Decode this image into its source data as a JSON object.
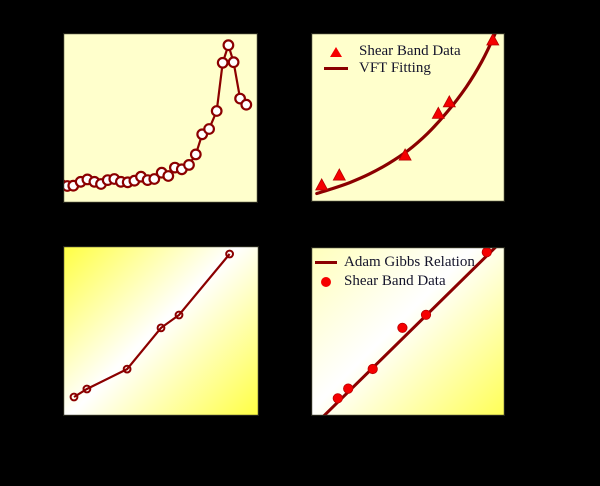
{
  "colors": {
    "background": "#000000",
    "panel-bg-solid": "#FFFFCC",
    "gradient-yellow-c": "#FFFF42",
    "gradient-pale-d": "#FFFFBB",
    "gradient-yellow-d": "#FFFF55",
    "maroon": "#8B0000",
    "red": "#F50000",
    "red-edge": "#B80000",
    "white": "#FFFFFF",
    "legend-text": "#14142B",
    "axis-border": "#222218"
  },
  "chart_data": [
    {
      "id": "panel-a",
      "type": "line",
      "background": "solid-pale-yellow",
      "axis_labels_visible": false,
      "coordinates": "normalized 0-1, x left-to-right, y bottom-to-top (axis tick text not legible in source)",
      "series": [
        {
          "name": "open-circle-curve",
          "line": "straight",
          "line_color_key": "maroon",
          "line_width": 2.2,
          "marker": "circle-open",
          "marker_radius": 4.8,
          "marker_stroke_width": 2.2,
          "marker_fill_key": "white",
          "marker_edge_key": "maroon",
          "points": [
            [
              -0.007,
              0.106
            ],
            [
              0.022,
              0.1
            ],
            [
              0.053,
              0.102
            ],
            [
              0.091,
              0.125
            ],
            [
              0.125,
              0.139
            ],
            [
              0.161,
              0.125
            ],
            [
              0.195,
              0.112
            ],
            [
              0.229,
              0.135
            ],
            [
              0.263,
              0.141
            ],
            [
              0.297,
              0.125
            ],
            [
              0.332,
              0.122
            ],
            [
              0.366,
              0.131
            ],
            [
              0.4,
              0.155
            ],
            [
              0.434,
              0.135
            ],
            [
              0.468,
              0.141
            ],
            [
              0.506,
              0.178
            ],
            [
              0.54,
              0.159
            ],
            [
              0.574,
              0.208
            ],
            [
              0.609,
              0.198
            ],
            [
              0.646,
              0.224
            ],
            [
              0.681,
              0.286
            ],
            [
              0.714,
              0.404
            ],
            [
              0.749,
              0.435
            ],
            [
              0.788,
              0.541
            ],
            [
              0.819,
              0.825
            ],
            [
              0.848,
              0.928
            ],
            [
              0.875,
              0.828
            ],
            [
              0.908,
              0.614
            ],
            [
              0.94,
              0.578
            ]
          ]
        }
      ]
    },
    {
      "id": "panel-b",
      "type": "scatter-with-fit",
      "background": "solid-pale-yellow",
      "axis_labels_visible": false,
      "legend": [
        {
          "swatch": "triangle",
          "label": "Shear Band Data"
        },
        {
          "swatch": "line",
          "label": "VFT Fitting"
        }
      ],
      "series": [
        {
          "name": "vft-fit-curve",
          "line": "smooth",
          "line_color_key": "maroon",
          "line_width": 3.2,
          "points": [
            [
              0.03,
              0.05
            ],
            [
              0.1,
              0.075
            ],
            [
              0.2,
              0.115
            ],
            [
              0.3,
              0.165
            ],
            [
              0.4,
              0.228
            ],
            [
              0.5,
              0.305
            ],
            [
              0.6,
              0.405
            ],
            [
              0.7,
              0.53
            ],
            [
              0.8,
              0.68
            ],
            [
              0.88,
              0.83
            ],
            [
              0.945,
              0.985
            ],
            [
              0.958,
              1.03
            ]
          ]
        },
        {
          "name": "shear-band-triangles",
          "marker": "triangle",
          "marker_size": 12,
          "marker_fill_key": "red",
          "marker_edge_key": "red-edge",
          "points": [
            [
              0.055,
              0.101
            ],
            [
              0.146,
              0.16
            ],
            [
              0.485,
              0.278
            ],
            [
              0.656,
              0.525
            ],
            [
              0.713,
              0.593
            ],
            [
              0.937,
              0.959
            ]
          ]
        }
      ]
    },
    {
      "id": "panel-c",
      "type": "line",
      "background": "diagonal-yellow-white-yellow-gradient",
      "axis_labels_visible": false,
      "series": [
        {
          "name": "ring-markers",
          "marker": "circle-ring",
          "marker_radius": 3.4,
          "marker_stroke_width": 2,
          "marker_edge_key": "maroon",
          "points": [
            [
              0.056,
              0.112
            ],
            [
              0.122,
              0.159
            ],
            [
              0.327,
              0.276
            ],
            [
              0.5,
              0.518
            ],
            [
              0.592,
              0.594
            ],
            [
              0.85,
              0.953
            ]
          ]
        },
        {
          "name": "connecting-line",
          "line": "straight",
          "line_color_key": "maroon",
          "line_width": 2.2,
          "points": [
            [
              0.056,
              0.112
            ],
            [
              0.122,
              0.159
            ],
            [
              0.327,
              0.276
            ],
            [
              0.5,
              0.518
            ],
            [
              0.592,
              0.594
            ],
            [
              0.85,
              0.953
            ]
          ]
        }
      ]
    },
    {
      "id": "panel-d",
      "type": "scatter-with-fit",
      "background": "diagonal-yellow-white-yellow-gradient",
      "axis_labels_visible": false,
      "legend": [
        {
          "swatch": "line",
          "label": "Adam Gibbs Relation"
        },
        {
          "swatch": "dot",
          "label": "Shear Band Data"
        }
      ],
      "series": [
        {
          "name": "adam-gibbs-fit-line",
          "line": "straight",
          "line_color_key": "maroon",
          "line_width": 3,
          "points": [
            [
              0.03,
              -0.04
            ],
            [
              0.97,
              1.02
            ]
          ]
        },
        {
          "name": "shear-band-dots",
          "marker": "circle-filled",
          "marker_radius": 4.7,
          "marker_stroke_width": 0.8,
          "marker_fill_key": "red",
          "marker_edge_key": "red-edge",
          "points": [
            [
              0.138,
              0.105
            ],
            [
              0.192,
              0.162
            ],
            [
              0.318,
              0.278
            ],
            [
              0.471,
              0.522
            ],
            [
              0.593,
              0.599
            ],
            [
              0.906,
              0.97
            ]
          ]
        }
      ]
    }
  ]
}
